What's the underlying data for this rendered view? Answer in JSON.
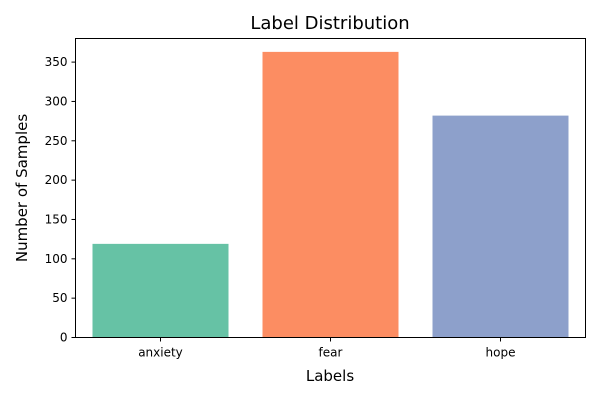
{
  "chart_data": {
    "type": "bar",
    "title": "Label Distribution",
    "xlabel": "Labels",
    "ylabel": "Number of Samples",
    "categories": [
      "anxiety",
      "fear",
      "hope"
    ],
    "values": [
      119,
      363,
      282
    ],
    "colors": [
      "#66c2a5",
      "#fc8d62",
      "#8da0cb"
    ],
    "ylim": [
      0,
      380
    ],
    "yticks": [
      0,
      50,
      100,
      150,
      200,
      250,
      300,
      350
    ],
    "grid": false,
    "legend": "none"
  }
}
